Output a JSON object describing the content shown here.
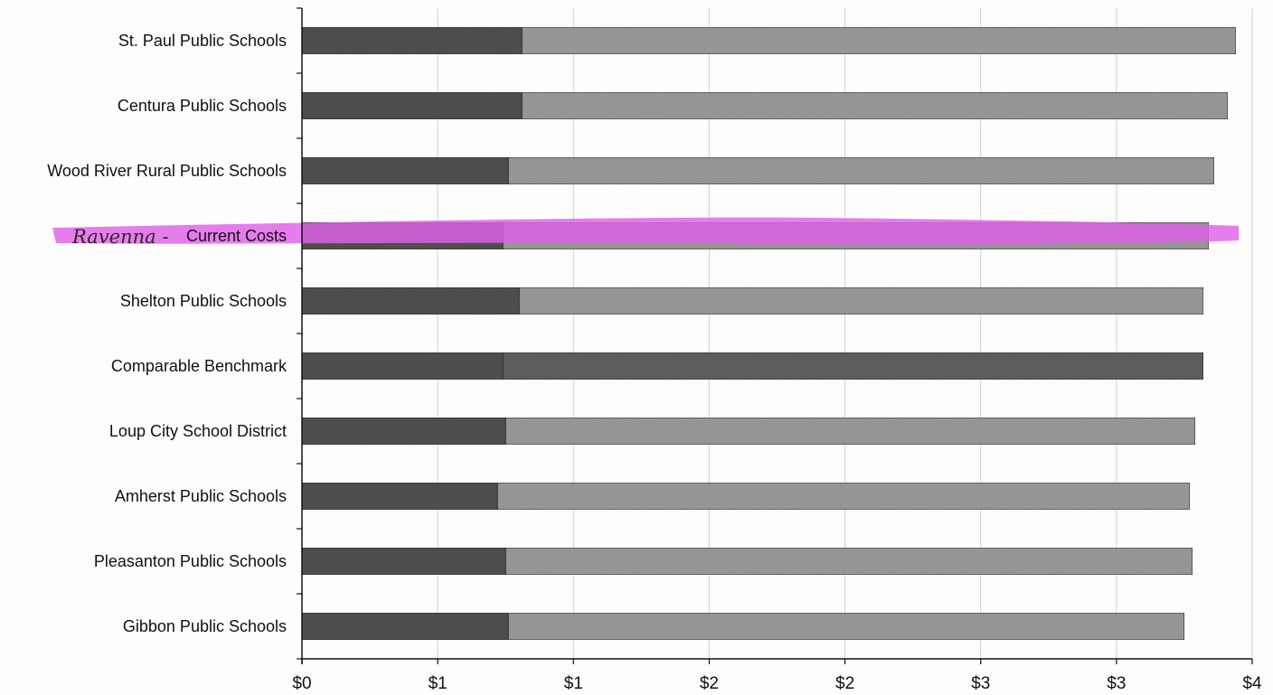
{
  "chart_data": {
    "type": "bar",
    "orientation": "horizontal",
    "stacked": true,
    "categories": [
      "St. Paul Public Schools",
      "Centura Public Schools",
      "Wood River Rural Public Schools",
      "Current Costs",
      "Shelton Public Schools",
      "Comparable Benchmark",
      "Loup City School District",
      "Amherst Public Schools",
      "Pleasanton Public Schools",
      "Gibbon Public Schools"
    ],
    "series": [
      {
        "values": [
          0.81,
          0.81,
          0.76,
          0.74,
          0.8,
          0.74,
          0.75,
          0.72,
          0.75,
          0.76
        ]
      },
      {
        "values": [
          2.63,
          2.6,
          2.6,
          2.6,
          2.52,
          2.58,
          2.54,
          2.55,
          2.53,
          2.49
        ]
      }
    ],
    "series_colors": [
      "#505050",
      "#9a9a9a"
    ],
    "highlight": {
      "category": "Current Costs",
      "handwritten_note": "Ravenna -",
      "marker_color": "#e060e8"
    },
    "tick_values": [
      0,
      0.5,
      1,
      1.5,
      2,
      2.5,
      3,
      3.5
    ],
    "tick_labels": [
      "$0",
      "$1",
      "$1",
      "$2",
      "$2",
      "$3",
      "$3",
      "$4"
    ],
    "xlim": [
      0,
      3.5
    ],
    "grid": true,
    "title": "",
    "xlabel": "",
    "ylabel": ""
  }
}
